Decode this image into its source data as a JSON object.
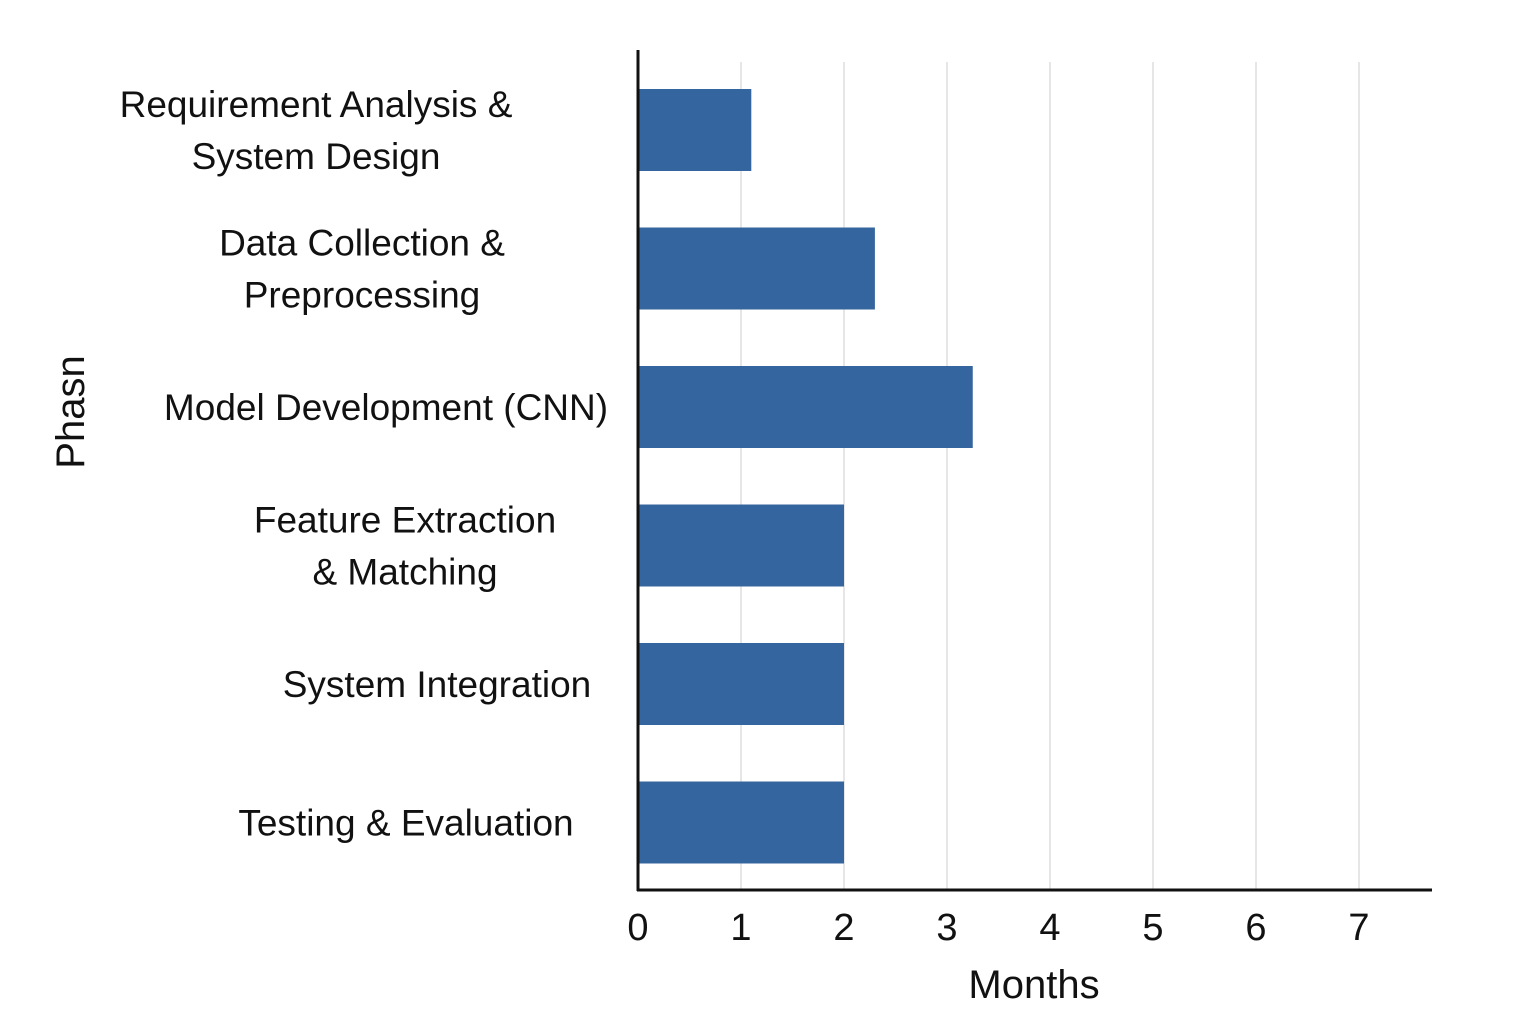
{
  "chart_data": {
    "type": "bar",
    "orientation": "horizontal",
    "categories": [
      [
        "Requirement Analysis &",
        "System Design"
      ],
      [
        "Data Collection &",
        "Preprocessing"
      ],
      [
        "Model Development (CNN)"
      ],
      [
        "Feature Extraction",
        "& Matching"
      ],
      [
        "System Integration"
      ],
      [
        "Testing & Evaluation"
      ]
    ],
    "values": [
      1.1,
      2.3,
      3.25,
      2.0,
      2.0,
      2.0
    ],
    "xlabel": "Months",
    "ylabel": "Phasn",
    "xticks": [
      "0",
      "1",
      "2",
      "3",
      "4",
      "5",
      "6",
      "7"
    ],
    "xlim": [
      0,
      7.75
    ],
    "grid": "vertical",
    "bar_color": "#35659e",
    "grid_color": "#e6e6e6",
    "axis_color": "#111111"
  }
}
